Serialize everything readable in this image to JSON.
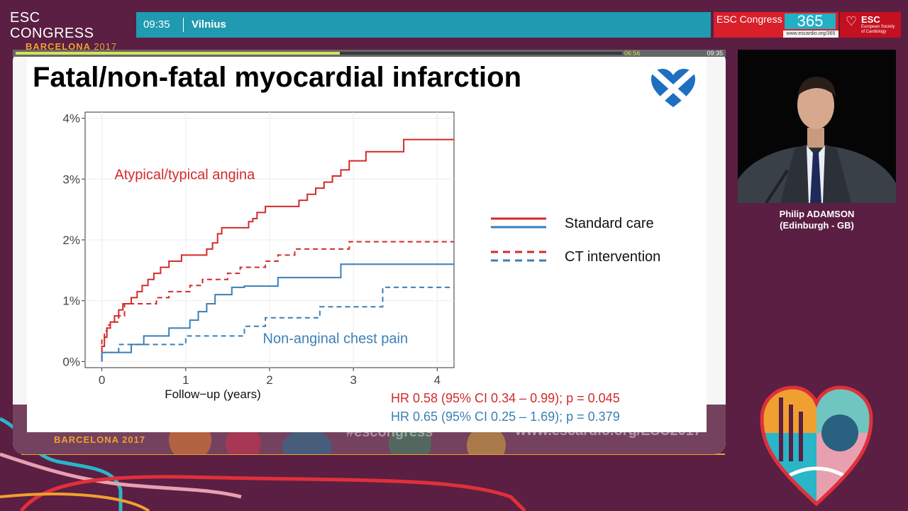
{
  "header": {
    "logo_line1": "ESC CONGRESS",
    "logo_line2_city": "BARCELONA",
    "logo_line2_year": "2017",
    "time": "09:35",
    "room": "Vilnius",
    "brand_365_text": "ESC Congress",
    "brand_365_num": "365",
    "brand_365_url": "www.escardio.org/365",
    "esc_name": "ESC",
    "esc_sub": "European Society of Cardiology"
  },
  "player": {
    "elapsed": "06:56",
    "total": "09:35",
    "progress_fraction": 0.535
  },
  "backdrop": {
    "city": "BARCELONA 2017",
    "hashtag": "#escongress",
    "url": "www.escardio.org/ESC2017"
  },
  "slide": {
    "title": "Fatal/non-fatal myocardial infarction",
    "flag_icon": "scotland-heart-flag-icon"
  },
  "chart_data": {
    "type": "line",
    "x_label": "Follow−up (years)",
    "x_ticks": [
      "0",
      "1",
      "2",
      "3",
      "4"
    ],
    "x_range": [
      -0.2,
      4.2
    ],
    "y_ticks": [
      "0%",
      "1%",
      "2%",
      "3%",
      "4%"
    ],
    "y_range": [
      -0.1,
      4.1
    ],
    "annotations": [
      {
        "text": "Atypical/typical angina",
        "color": "#d42a2a",
        "x": 0.15,
        "y": 3.0
      },
      {
        "text": "Non-anginal chest pain",
        "color": "#3b7fb6",
        "x": 1.92,
        "y": 0.3
      }
    ],
    "legend": {
      "placement": "right",
      "entries": [
        {
          "text": "Standard care",
          "style": "solid"
        },
        {
          "text": "CT intervention",
          "style": "dashed"
        }
      ]
    },
    "series": [
      {
        "group": "Atypical/typical angina",
        "arm": "Standard care",
        "color": "#d42a2a",
        "dash": false,
        "points": [
          [
            0,
            0
          ],
          [
            0,
            0.25
          ],
          [
            0.03,
            0.25
          ],
          [
            0.03,
            0.4
          ],
          [
            0.06,
            0.4
          ],
          [
            0.06,
            0.55
          ],
          [
            0.1,
            0.55
          ],
          [
            0.1,
            0.65
          ],
          [
            0.15,
            0.65
          ],
          [
            0.15,
            0.75
          ],
          [
            0.2,
            0.75
          ],
          [
            0.2,
            0.85
          ],
          [
            0.25,
            0.85
          ],
          [
            0.25,
            0.95
          ],
          [
            0.35,
            0.95
          ],
          [
            0.35,
            1.05
          ],
          [
            0.42,
            1.05
          ],
          [
            0.42,
            1.15
          ],
          [
            0.48,
            1.15
          ],
          [
            0.48,
            1.25
          ],
          [
            0.55,
            1.25
          ],
          [
            0.55,
            1.35
          ],
          [
            0.62,
            1.35
          ],
          [
            0.62,
            1.45
          ],
          [
            0.7,
            1.45
          ],
          [
            0.7,
            1.55
          ],
          [
            0.8,
            1.55
          ],
          [
            0.8,
            1.65
          ],
          [
            0.95,
            1.65
          ],
          [
            0.95,
            1.75
          ],
          [
            1.25,
            1.75
          ],
          [
            1.25,
            1.85
          ],
          [
            1.32,
            1.85
          ],
          [
            1.32,
            1.95
          ],
          [
            1.38,
            1.95
          ],
          [
            1.38,
            2.1
          ],
          [
            1.43,
            2.1
          ],
          [
            1.43,
            2.2
          ],
          [
            1.75,
            2.2
          ],
          [
            1.75,
            2.3
          ],
          [
            1.8,
            2.3
          ],
          [
            1.8,
            2.35
          ],
          [
            1.85,
            2.35
          ],
          [
            1.85,
            2.45
          ],
          [
            1.95,
            2.45
          ],
          [
            1.95,
            2.55
          ],
          [
            2.35,
            2.55
          ],
          [
            2.35,
            2.65
          ],
          [
            2.45,
            2.65
          ],
          [
            2.45,
            2.75
          ],
          [
            2.55,
            2.75
          ],
          [
            2.55,
            2.85
          ],
          [
            2.65,
            2.85
          ],
          [
            2.65,
            2.95
          ],
          [
            2.75,
            2.95
          ],
          [
            2.75,
            3.05
          ],
          [
            2.85,
            3.05
          ],
          [
            2.85,
            3.15
          ],
          [
            2.95,
            3.15
          ],
          [
            2.95,
            3.3
          ],
          [
            3.15,
            3.3
          ],
          [
            3.15,
            3.45
          ],
          [
            3.6,
            3.45
          ],
          [
            3.6,
            3.65
          ],
          [
            4.2,
            3.65
          ]
        ]
      },
      {
        "group": "Atypical/typical angina",
        "arm": "CT intervention",
        "color": "#d42a2a",
        "dash": true,
        "points": [
          [
            0,
            0
          ],
          [
            0,
            0.35
          ],
          [
            0.03,
            0.35
          ],
          [
            0.03,
            0.5
          ],
          [
            0.06,
            0.5
          ],
          [
            0.06,
            0.6
          ],
          [
            0.1,
            0.6
          ],
          [
            0.1,
            0.65
          ],
          [
            0.2,
            0.65
          ],
          [
            0.2,
            0.75
          ],
          [
            0.27,
            0.75
          ],
          [
            0.27,
            0.95
          ],
          [
            0.65,
            0.95
          ],
          [
            0.65,
            1.05
          ],
          [
            0.8,
            1.05
          ],
          [
            0.8,
            1.15
          ],
          [
            1.05,
            1.15
          ],
          [
            1.05,
            1.25
          ],
          [
            1.2,
            1.25
          ],
          [
            1.2,
            1.35
          ],
          [
            1.5,
            1.35
          ],
          [
            1.5,
            1.45
          ],
          [
            1.65,
            1.45
          ],
          [
            1.65,
            1.55
          ],
          [
            1.95,
            1.55
          ],
          [
            1.95,
            1.65
          ],
          [
            2.1,
            1.65
          ],
          [
            2.1,
            1.75
          ],
          [
            2.3,
            1.75
          ],
          [
            2.3,
            1.85
          ],
          [
            2.95,
            1.85
          ],
          [
            2.95,
            1.97
          ],
          [
            4.2,
            1.97
          ]
        ]
      },
      {
        "group": "Non-anginal chest pain",
        "arm": "Standard care",
        "color": "#3b7fb6",
        "dash": false,
        "points": [
          [
            0,
            0
          ],
          [
            0,
            0.15
          ],
          [
            0.35,
            0.15
          ],
          [
            0.35,
            0.28
          ],
          [
            0.5,
            0.28
          ],
          [
            0.5,
            0.42
          ],
          [
            0.8,
            0.42
          ],
          [
            0.8,
            0.55
          ],
          [
            1.05,
            0.55
          ],
          [
            1.05,
            0.68
          ],
          [
            1.15,
            0.68
          ],
          [
            1.15,
            0.82
          ],
          [
            1.25,
            0.82
          ],
          [
            1.25,
            0.95
          ],
          [
            1.35,
            0.95
          ],
          [
            1.35,
            1.1
          ],
          [
            1.55,
            1.1
          ],
          [
            1.55,
            1.22
          ],
          [
            1.7,
            1.22
          ],
          [
            1.7,
            1.24
          ],
          [
            2.1,
            1.24
          ],
          [
            2.1,
            1.38
          ],
          [
            2.85,
            1.38
          ],
          [
            2.85,
            1.6
          ],
          [
            4.2,
            1.6
          ]
        ]
      },
      {
        "group": "Non-anginal chest pain",
        "arm": "CT intervention",
        "color": "#3b7fb6",
        "dash": true,
        "points": [
          [
            0,
            0
          ],
          [
            0,
            0.15
          ],
          [
            0.2,
            0.15
          ],
          [
            0.2,
            0.28
          ],
          [
            1.0,
            0.28
          ],
          [
            1.0,
            0.42
          ],
          [
            1.7,
            0.42
          ],
          [
            1.7,
            0.58
          ],
          [
            1.95,
            0.58
          ],
          [
            1.95,
            0.72
          ],
          [
            2.6,
            0.72
          ],
          [
            2.6,
            0.9
          ],
          [
            3.35,
            0.9
          ],
          [
            3.35,
            1.22
          ],
          [
            4.2,
            1.22
          ]
        ]
      }
    ],
    "stats": [
      {
        "text": "HR 0.58 (95% CI 0.34 – 0.99); p = 0.045",
        "color": "#d42a2a"
      },
      {
        "text": "HR 0.65 (95% CI 0.25 – 1.69); p = 0.379",
        "color": "#3b7fb6"
      }
    ]
  },
  "speaker": {
    "name": "Philip ADAMSON",
    "affiliation": "(Edinburgh - GB)"
  },
  "colors": {
    "background": "#5a1f42",
    "topbar": "#1f9ab0",
    "red": "#d42a2a",
    "blue": "#3b7fb6"
  }
}
